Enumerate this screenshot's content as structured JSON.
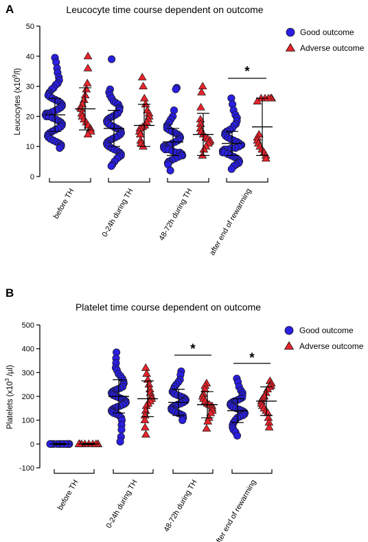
{
  "colors": {
    "good": "#2a1fe0",
    "adverse": "#e8242c",
    "axis": "#000000"
  },
  "legend": {
    "good_label": "Good outcome",
    "adverse_label": "Adverse outcome"
  },
  "chart_data": [
    {
      "type": "scatter",
      "panel": "A",
      "title": "Leucocyte time course dependent on outcome",
      "ylabel_main": "Leucocytes (x10",
      "ylabel_sup": "9",
      "ylabel_tail": "/l)",
      "ylim": [
        0,
        50
      ],
      "yticks": [
        0,
        10,
        20,
        30,
        40,
        50
      ],
      "categories": [
        "before TH",
        "0-24h during TH",
        "48-72h during TH",
        "after end of rewarming"
      ],
      "legend_position": "top-right",
      "significance": [
        {
          "category": "after end of rewarming",
          "label": "*"
        }
      ],
      "series": [
        {
          "name": "Good outcome",
          "marker": "circle",
          "mean": [
            20.5,
            16.0,
            11.5,
            11.0
          ],
          "sd": [
            5.5,
            6.0,
            4.5,
            4.0
          ],
          "points": [
            [
              39.5,
              38,
              36,
              34.5,
              33,
              32,
              31,
              30.5,
              29.5,
              29,
              28,
              27.5,
              27,
              26.5,
              26,
              25.5,
              25,
              24.5,
              24,
              23.5,
              23,
              22.5,
              22,
              21.5,
              21,
              21,
              20.5,
              20,
              20,
              19.5,
              19,
              18.5,
              18,
              17.5,
              17,
              16.5,
              16,
              15.5,
              15,
              14.5,
              14,
              13.5,
              13,
              12.5,
              12,
              11.5,
              11,
              10.5,
              10,
              9.5
            ],
            [
              39,
              29,
              28,
              27,
              26,
              25,
              24.5,
              24,
              23,
              22.5,
              22,
              21,
              20.5,
              20,
              19.5,
              19,
              18.5,
              18,
              17.5,
              17,
              16.5,
              16,
              15.5,
              15,
              14.5,
              14,
              13.5,
              13,
              12.5,
              12,
              11.5,
              11,
              10.5,
              10,
              9.5,
              9,
              8.5,
              8,
              7.5,
              7,
              6.5,
              6,
              5,
              4,
              3.5
            ],
            [
              29.5,
              29,
              22,
              20,
              19,
              18,
              17,
              16.5,
              16,
              15.5,
              15,
              14.5,
              14,
              13.5,
              13,
              12.5,
              12,
              11.5,
              11,
              10.5,
              10,
              10,
              9.5,
              9,
              9,
              8.5,
              8,
              8,
              7.5,
              7,
              7,
              6.5,
              6,
              5.5,
              5,
              4.5,
              4,
              2
            ],
            [
              26,
              24,
              22,
              20.5,
              19.5,
              18.5,
              17.5,
              17,
              16,
              15.5,
              15,
              14.5,
              14,
              13.5,
              13,
              12.5,
              12,
              11.5,
              11,
              10.5,
              10.5,
              10,
              9.5,
              9.5,
              9,
              9,
              8.5,
              8,
              8,
              7.5,
              7,
              6.5,
              6,
              5.5,
              5,
              4.5,
              4,
              3.5,
              2.5
            ]
          ]
        },
        {
          "name": "Adverse outcome",
          "marker": "triangle",
          "mean": [
            22.5,
            17.0,
            14.0,
            16.5
          ],
          "sd": [
            7.0,
            7.0,
            7.0,
            9.5
          ],
          "points": [
            [
              40,
              36,
              31,
              29,
              27,
              25.5,
              24,
              23,
              22.5,
              21,
              20,
              19,
              18,
              17,
              16,
              15.5,
              15,
              14
            ],
            [
              33,
              30,
              26,
              24,
              22,
              21,
              20,
              19,
              18,
              17,
              16.5,
              16,
              15,
              14,
              12,
              11,
              10
            ],
            [
              30,
              28,
              23,
              19,
              17.5,
              16,
              15,
              14,
              13,
              12.5,
              12,
              11.5,
              11,
              10,
              9,
              7
            ],
            [
              26,
              26,
              26,
              26,
              26,
              26,
              25,
              14,
              13,
              12,
              11,
              10,
              9,
              8,
              7,
              6
            ]
          ]
        }
      ]
    },
    {
      "type": "scatter",
      "panel": "B",
      "title": "Platelet time course dependent on outcome",
      "ylabel_main": "Platelets (x10",
      "ylabel_sup": "3",
      "ylabel_tail": " /µl)",
      "ylim": [
        -100,
        500
      ],
      "yticks": [
        -100,
        0,
        100,
        200,
        300,
        400,
        500
      ],
      "categories": [
        "before TH",
        "0-24h during TH",
        "48-72h during TH",
        "after end of rewarming"
      ],
      "legend_position": "top-right",
      "significance": [
        {
          "category": "48-72h during TH",
          "label": "*"
        },
        {
          "category": "after end of rewarming",
          "label": "*"
        }
      ],
      "series": [
        {
          "name": "Good outcome",
          "marker": "circle",
          "mean": [
            0,
            200,
            175,
            140
          ],
          "sd": [
            3,
            70,
            55,
            50
          ],
          "points": [
            [
              0,
              0,
              0,
              0,
              0,
              0,
              0,
              0,
              0,
              0,
              0,
              0
            ],
            [
              385,
              360,
              340,
              320,
              310,
              295,
              285,
              275,
              265,
              255,
              250,
              240,
              235,
              230,
              225,
              220,
              215,
              210,
              205,
              200,
              195,
              190,
              185,
              180,
              175,
              170,
              165,
              160,
              155,
              150,
              145,
              140,
              135,
              130,
              125,
              120,
              110,
              100,
              80,
              60,
              30,
              10
            ],
            [
              305,
              290,
              270,
              260,
              250,
              240,
              230,
              220,
              215,
              210,
              205,
              200,
              195,
              190,
              185,
              180,
              175,
              170,
              165,
              160,
              155,
              150,
              145,
              140,
              135,
              130,
              125,
              120,
              110,
              100
            ],
            [
              275,
              260,
              240,
              225,
              215,
              205,
              195,
              190,
              185,
              180,
              175,
              170,
              165,
              160,
              155,
              150,
              145,
              140,
              135,
              130,
              125,
              120,
              115,
              110,
              100,
              90,
              80,
              70,
              60,
              50,
              35
            ]
          ]
        },
        {
          "name": "Adverse outcome",
          "marker": "triangle",
          "mean": [
            0,
            190,
            165,
            180
          ],
          "sd": [
            3,
            75,
            55,
            60
          ],
          "points": [
            [
              0,
              0,
              0,
              0,
              0,
              0,
              0,
              0,
              0
            ],
            [
              320,
              295,
              270,
              250,
              230,
              215,
              200,
              190,
              180,
              170,
              160,
              140,
              120,
              100,
              70,
              40
            ],
            [
              255,
              245,
              230,
              210,
              200,
              190,
              180,
              170,
              165,
              160,
              150,
              140,
              130,
              110,
              95,
              65
            ],
            [
              265,
              255,
              245,
              240,
              230,
              215,
              200,
              190,
              180,
              170,
              160,
              150,
              140,
              130,
              110,
              90,
              70
            ]
          ]
        }
      ]
    }
  ]
}
